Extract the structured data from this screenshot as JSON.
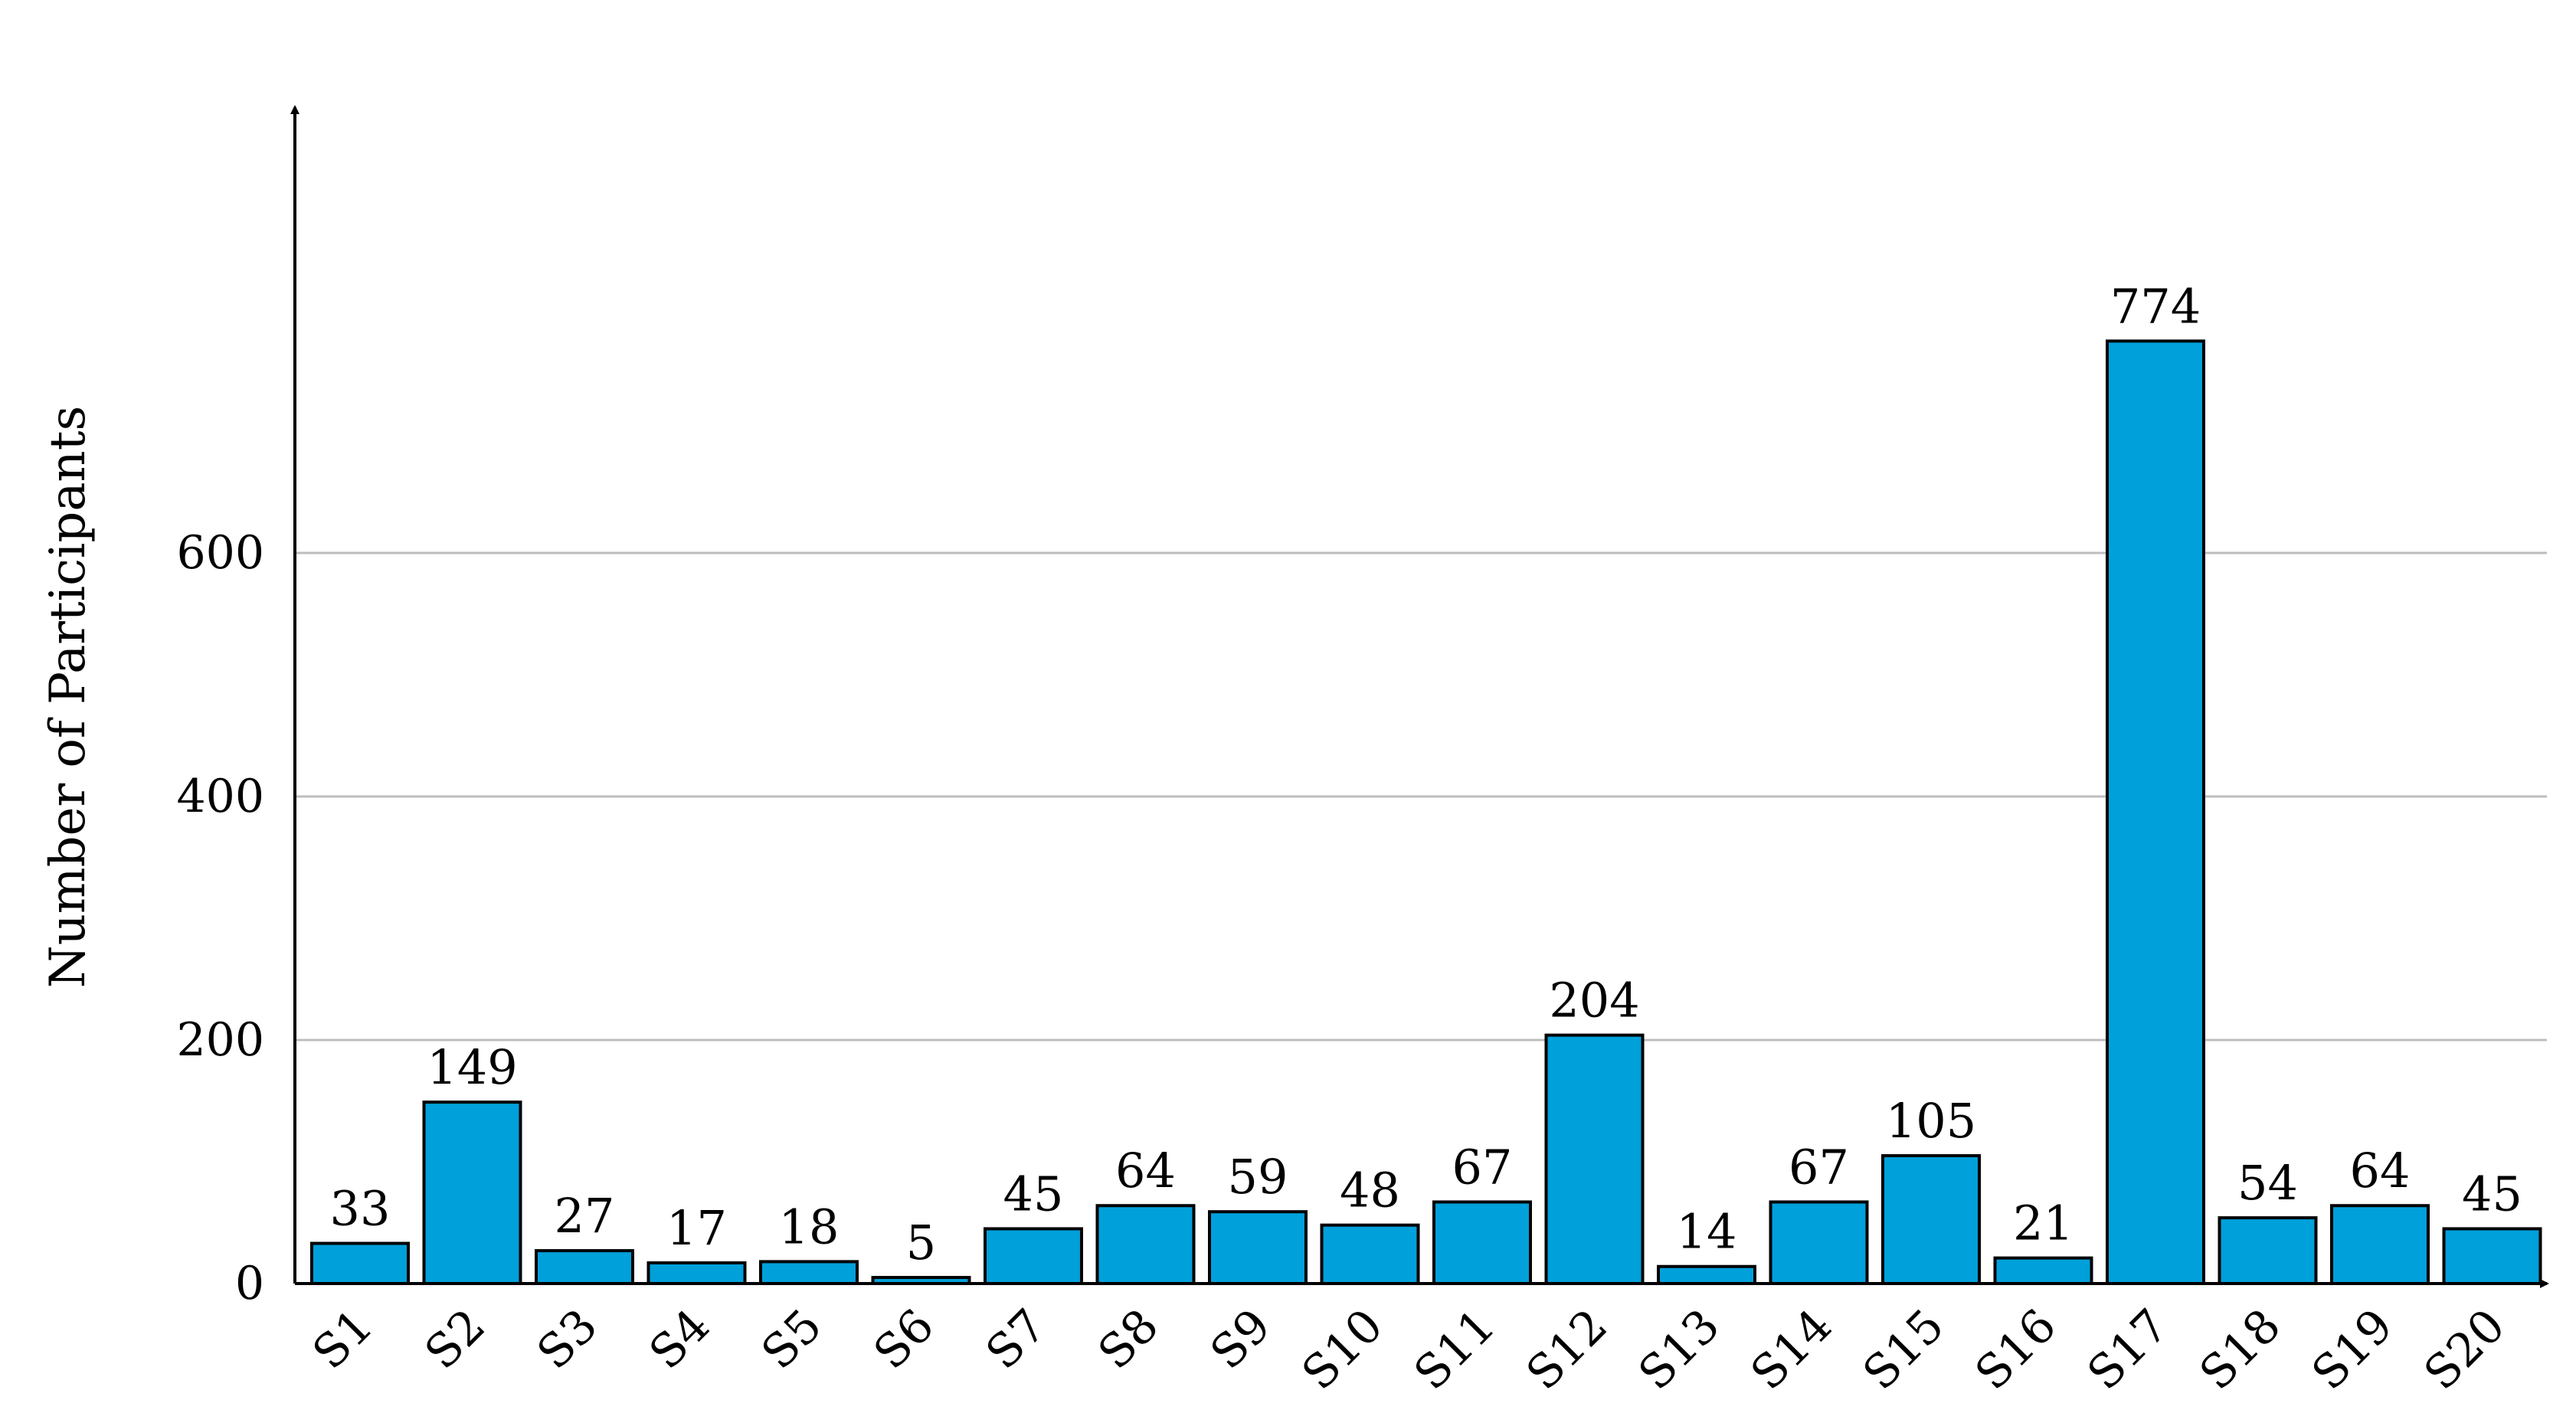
{
  "chart_data": {
    "type": "bar",
    "title": "",
    "xlabel": "",
    "ylabel": "Number of Participants",
    "categories": [
      "S1",
      "S2",
      "S3",
      "S4",
      "S5",
      "S6",
      "S7",
      "S8",
      "S9",
      "S10",
      "S11",
      "S12",
      "S13",
      "S14",
      "S15",
      "S16",
      "S17",
      "S18",
      "S19",
      "S20"
    ],
    "values": [
      33,
      149,
      27,
      17,
      18,
      5,
      45,
      64,
      59,
      48,
      67,
      204,
      14,
      67,
      105,
      21,
      774,
      54,
      64,
      45
    ],
    "ylim": [
      0,
      780
    ],
    "yticks": [
      0,
      200,
      400,
      600
    ],
    "grid": true,
    "legend": "none",
    "data_labels": true,
    "bar_color": "#00a0da",
    "grid_color": "#bdbdbd"
  }
}
